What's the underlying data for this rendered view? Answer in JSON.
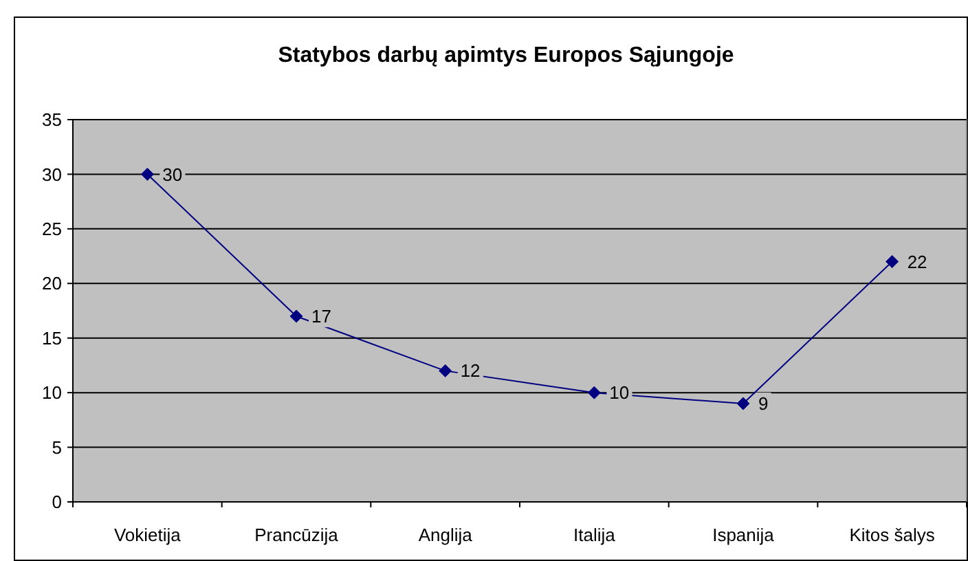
{
  "chart_data": {
    "type": "line",
    "title": "Statybos darbų apimtys Europos Sąjungoje",
    "categories": [
      "Vokietija",
      "Prancūzija",
      "Anglija",
      "Italija",
      "Ispanija",
      "Kitos šalys"
    ],
    "series": [
      {
        "color": "#000080",
        "values": [
          30,
          17,
          12,
          10,
          9,
          22
        ]
      }
    ],
    "ylim": [
      0,
      35
    ],
    "yticks": [
      0,
      5,
      10,
      15,
      20,
      25,
      30,
      35
    ],
    "grid": "y",
    "marker": "diamond",
    "line_style": "solid",
    "data_labels": true
  }
}
